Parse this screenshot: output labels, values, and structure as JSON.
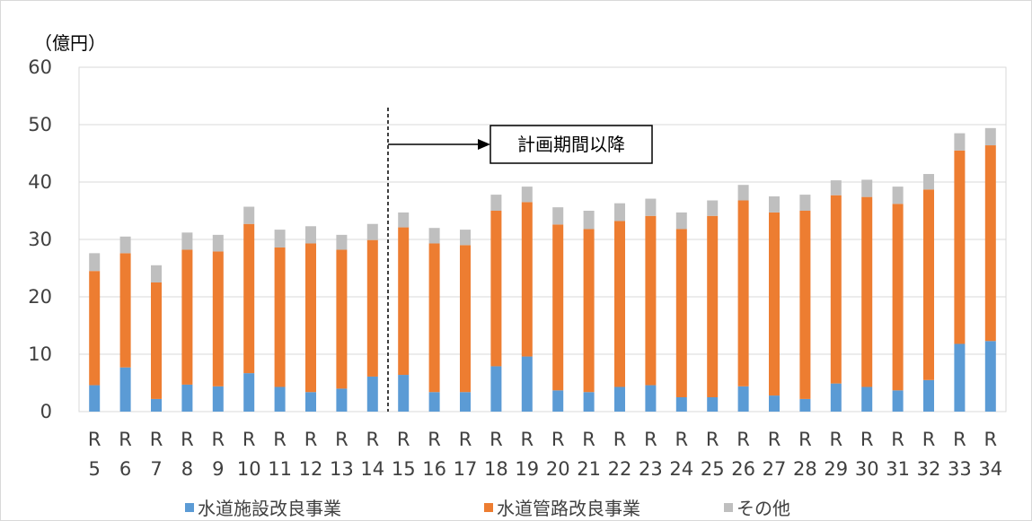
{
  "chart_data": {
    "type": "bar",
    "stacked": true,
    "unit_label": "（億円）",
    "categories": [
      "R5",
      "R6",
      "R7",
      "R8",
      "R9",
      "R10",
      "R11",
      "R12",
      "R13",
      "R14",
      "R15",
      "R16",
      "R17",
      "R18",
      "R19",
      "R20",
      "R21",
      "R22",
      "R23",
      "R24",
      "R25",
      "R26",
      "R27",
      "R28",
      "R29",
      "R30",
      "R31",
      "R32",
      "R33",
      "R34"
    ],
    "category_lines": [
      [
        "R",
        "5"
      ],
      [
        "R",
        "6"
      ],
      [
        "R",
        "7"
      ],
      [
        "R",
        "8"
      ],
      [
        "R",
        "9"
      ],
      [
        "R",
        "10"
      ],
      [
        "R",
        "11"
      ],
      [
        "R",
        "12"
      ],
      [
        "R",
        "13"
      ],
      [
        "R",
        "14"
      ],
      [
        "R",
        "15"
      ],
      [
        "R",
        "16"
      ],
      [
        "R",
        "17"
      ],
      [
        "R",
        "18"
      ],
      [
        "R",
        "19"
      ],
      [
        "R",
        "20"
      ],
      [
        "R",
        "21"
      ],
      [
        "R",
        "22"
      ],
      [
        "R",
        "23"
      ],
      [
        "R",
        "24"
      ],
      [
        "R",
        "25"
      ],
      [
        "R",
        "26"
      ],
      [
        "R",
        "27"
      ],
      [
        "R",
        "28"
      ],
      [
        "R",
        "29"
      ],
      [
        "R",
        "30"
      ],
      [
        "R",
        "31"
      ],
      [
        "R",
        "32"
      ],
      [
        "R",
        "33"
      ],
      [
        "R",
        "34"
      ]
    ],
    "series": [
      {
        "name": "水道施設改良事業",
        "color": "#5b9bd5",
        "values": [
          4.6,
          7.7,
          2.2,
          4.7,
          4.4,
          6.7,
          4.3,
          3.4,
          4.0,
          6.1,
          6.4,
          3.4,
          3.4,
          7.9,
          9.6,
          3.7,
          3.4,
          4.3,
          4.6,
          2.5,
          2.5,
          4.4,
          2.8,
          2.2,
          4.9,
          4.3,
          3.7,
          5.5,
          11.8,
          12.3
        ]
      },
      {
        "name": "水道管路改良事業",
        "color": "#ed7d31",
        "values": [
          19.9,
          19.9,
          20.3,
          23.5,
          23.5,
          26.0,
          24.3,
          25.9,
          24.2,
          23.8,
          25.7,
          25.9,
          25.6,
          27.1,
          26.9,
          28.9,
          28.4,
          28.9,
          29.5,
          29.3,
          31.6,
          32.4,
          31.9,
          32.8,
          32.8,
          33.1,
          32.5,
          33.2,
          33.7,
          34.1
        ]
      },
      {
        "name": "その他",
        "color": "#bfbfbf",
        "values": [
          3.1,
          2.9,
          3.0,
          3.0,
          2.9,
          3.0,
          3.1,
          3.0,
          2.6,
          2.8,
          2.6,
          2.7,
          2.7,
          2.8,
          2.7,
          3.0,
          3.2,
          3.1,
          3.0,
          2.9,
          2.7,
          2.7,
          2.8,
          2.8,
          2.6,
          3.0,
          3.0,
          2.7,
          3.0,
          3.0
        ]
      }
    ],
    "ylim": [
      0,
      60
    ],
    "y_ticks": [
      0,
      10,
      20,
      30,
      40,
      50,
      60
    ],
    "grid": true,
    "legend_position": "bottom",
    "divider_after_category": "R14",
    "annotation": "計画期間以降"
  }
}
